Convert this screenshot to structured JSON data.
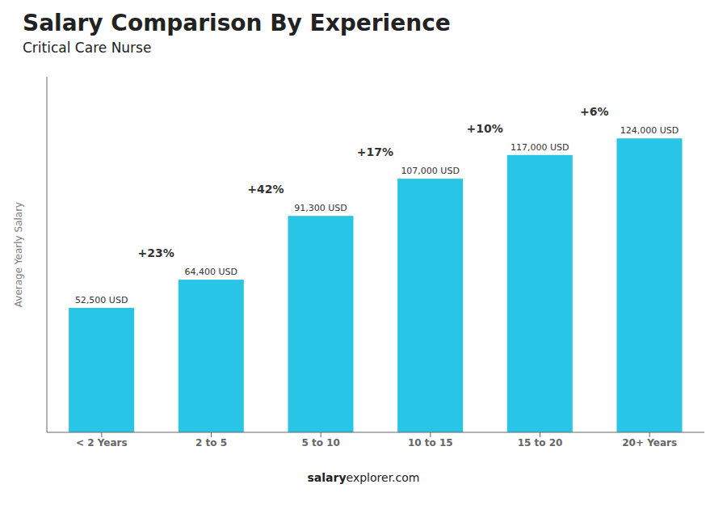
{
  "chart_data": {
    "type": "bar",
    "title": "Salary Comparison By Experience",
    "subtitle": "Critical Care Nurse",
    "categories": [
      "< 2 Years",
      "2 to 5",
      "5 to 10",
      "10 to 15",
      "15 to 20",
      "20+ Years"
    ],
    "values": [
      52500,
      64400,
      91300,
      107000,
      117000,
      124000
    ],
    "value_labels": [
      "52,500 USD",
      "64,400 USD",
      "91,300 USD",
      "107,000 USD",
      "117,000 USD",
      "124,000 USD"
    ],
    "data_labels": true,
    "annotations": [
      "+23%",
      "+42%",
      "+17%",
      "+10%",
      "+6%"
    ],
    "ylabel": "Average Yearly Salary",
    "footer": [
      "salary",
      "explorer.com"
    ],
    "color": "#29C5E6",
    "ylim": [
      0,
      150000
    ],
    "tick_labels": "x",
    "grid": false
  }
}
